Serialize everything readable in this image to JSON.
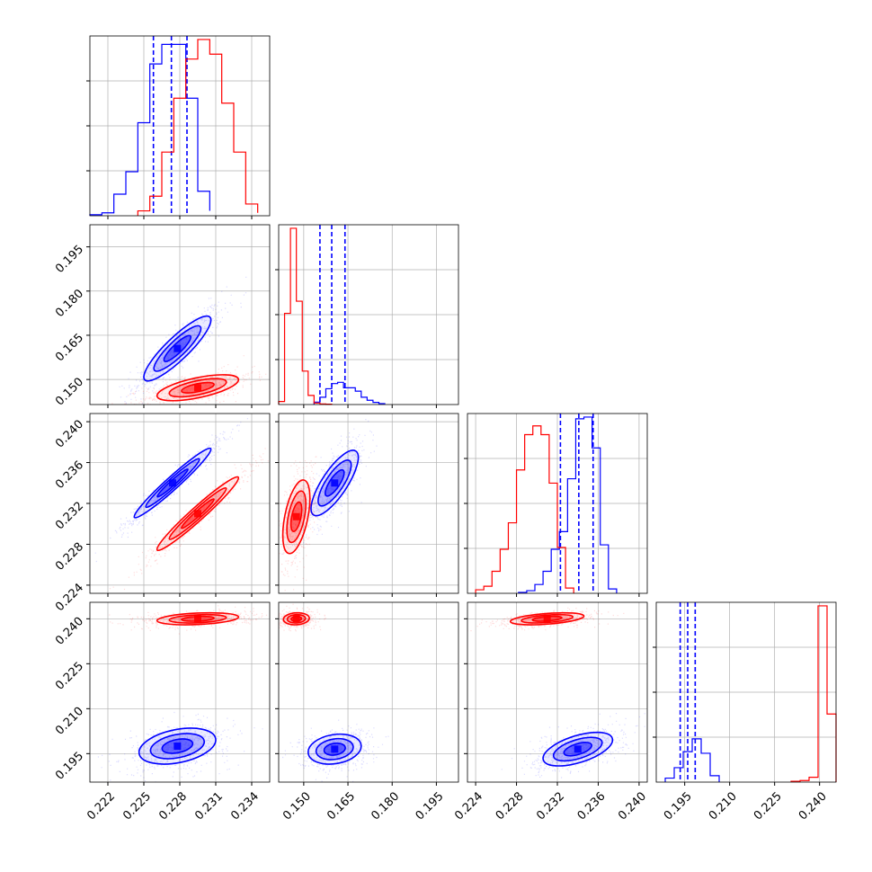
{
  "chart_data": {
    "type": "corner",
    "colors": {
      "series_a": "#0000ff",
      "series_b": "#ff0000",
      "grid": "#b0b0b0"
    },
    "grid": true,
    "parameters": [
      {
        "index": 0,
        "range": [
          0.2205,
          0.2355
        ],
        "ticks": [
          "0.222",
          "0.225",
          "0.228",
          "0.231",
          "0.234"
        ]
      },
      {
        "index": 1,
        "range": [
          0.1415,
          0.2025
        ],
        "ticks": [
          "0.150",
          "0.165",
          "0.180",
          "0.195"
        ]
      },
      {
        "index": 2,
        "range": [
          0.2232,
          0.2408
        ],
        "ticks": [
          "0.224",
          "0.228",
          "0.232",
          "0.236",
          "0.240"
        ]
      },
      {
        "index": 3,
        "range": [
          0.1855,
          0.2455
        ],
        "ticks": [
          "0.195",
          "0.210",
          "0.225",
          "0.240"
        ]
      }
    ],
    "series": [
      {
        "color": "#0000ff",
        "quantiles": [
          [
            0.2258,
            0.2273,
            0.2286
          ],
          [
            0.1555,
            0.1595,
            0.164
          ],
          [
            0.2323,
            0.2341,
            0.2355
          ],
          [
            0.1935,
            0.196,
            0.1985
          ]
        ],
        "histograms": [
          {
            "bins": [
              0.2205,
              0.2215,
              0.2225,
              0.2235,
              0.2245,
              0.2255,
              0.2265,
              0.2275,
              0.2285,
              0.2295,
              0.2305
            ],
            "counts": [
              1,
              3,
              22,
              45,
              95,
              155,
              175,
              175,
              120,
              25,
              5
            ]
          },
          {
            "bins": [
              0.1535,
              0.1555,
              0.1575,
              0.1595,
              0.1615,
              0.1635,
              0.1655,
              0.1675,
              0.1695,
              0.1715,
              0.1735,
              0.1755,
              0.1775
            ],
            "counts": [
              8,
              24,
              52,
              69,
              73,
              55,
              55,
              44,
              24,
              14,
              7,
              3,
              1
            ]
          },
          {
            "bins": [
              0.2282,
              0.229,
              0.2298,
              0.2306,
              0.2314,
              0.2322,
              0.233,
              0.2338,
              0.2346,
              0.2354,
              0.2362,
              0.237,
              0.2378
            ],
            "counts": [
              1,
              3,
              10,
              25,
              50,
              70,
              130,
              198,
              200,
              165,
              55,
              5
            ]
          },
          {
            "bins": [
              0.1885,
              0.1915,
              0.1945,
              0.1975,
              0.2005,
              0.2035,
              0.2065
            ],
            "counts": [
              5,
              18,
              38,
              54,
              36,
              8
            ]
          }
        ]
      },
      {
        "color": "#ff0000",
        "quantiles": [],
        "histograms": [
          {
            "bins": [
              0.2245,
              0.2255,
              0.2265,
              0.2275,
              0.2285,
              0.2295,
              0.2305,
              0.2315,
              0.2325,
              0.2335,
              0.2345
            ],
            "counts": [
              5,
              20,
              65,
              120,
              160,
              180,
              165,
              115,
              65,
              12,
              3
            ]
          },
          {
            "bins": [
              0.1415,
              0.1435,
              0.1455,
              0.1475,
              0.1495,
              0.1515,
              0.1535,
              0.1555,
              0.1575,
              0.1595
            ],
            "counts": [
              10,
              300,
              580,
              340,
              110,
              30,
              5,
              2,
              1
            ]
          },
          {
            "bins": [
              0.224,
              0.2248,
              0.2256,
              0.2264,
              0.2272,
              0.228,
              0.2288,
              0.2296,
              0.2304,
              0.2312,
              0.232,
              0.2328,
              0.2336
            ],
            "counts": [
              4,
              8,
              25,
              50,
              80,
              140,
              180,
              190,
              180,
              125,
              52,
              6
            ]
          },
          {
            "bins": [
              0.2305,
              0.2335,
              0.2365,
              0.2395,
              0.2425,
              0.2455
            ],
            "counts": [
              1,
              2,
              6,
              220,
              85
            ]
          }
        ]
      }
    ],
    "scatter": [
      {
        "pair": [
          0,
          1
        ],
        "series": [
          {
            "color": "#0000ff",
            "center": [
              0.2278,
              0.1605
            ],
            "spread": [
              0.0014,
              0.0055
            ],
            "rho": 0.88
          },
          {
            "color": "#ff0000",
            "center": [
              0.2295,
              0.1472
            ],
            "spread": [
              0.0017,
              0.0022
            ],
            "rho": 0.62
          }
        ]
      },
      {
        "pair": [
          0,
          2
        ],
        "series": [
          {
            "color": "#0000ff",
            "center": [
              0.2274,
              0.234
            ],
            "spread": [
              0.0016,
              0.0017
            ],
            "rho": 0.97
          },
          {
            "color": "#ff0000",
            "center": [
              0.2295,
              0.231
            ],
            "spread": [
              0.0017,
              0.0018
            ],
            "rho": 0.97
          }
        ]
      },
      {
        "pair": [
          1,
          2
        ],
        "series": [
          {
            "color": "#0000ff",
            "center": [
              0.1605,
              0.234
            ],
            "spread": [
              0.004,
              0.0016
            ],
            "rho": 0.78
          },
          {
            "color": "#ff0000",
            "center": [
              0.1475,
              0.2307
            ],
            "spread": [
              0.0023,
              0.0018
            ],
            "rho": 0.5
          }
        ]
      },
      {
        "pair": [
          0,
          3
        ],
        "series": [
          {
            "color": "#0000ff",
            "center": [
              0.2278,
              0.1975
            ],
            "spread": [
              0.0016,
              0.003
            ],
            "rho": 0.35
          },
          {
            "color": "#ff0000",
            "center": [
              0.2295,
              0.24
            ],
            "spread": [
              0.0017,
              0.001
            ],
            "rho": 0.3
          }
        ]
      },
      {
        "pair": [
          1,
          3
        ],
        "series": [
          {
            "color": "#0000ff",
            "center": [
              0.1605,
              0.1965
            ],
            "spread": [
              0.0045,
              0.0025
            ],
            "rho": 0.2
          },
          {
            "color": "#ff0000",
            "center": [
              0.1475,
              0.24
            ],
            "spread": [
              0.0022,
              0.001
            ],
            "rho": 0.1
          }
        ]
      },
      {
        "pair": [
          2,
          3
        ],
        "series": [
          {
            "color": "#0000ff",
            "center": [
              0.234,
              0.1965
            ],
            "spread": [
              0.0017,
              0.0028
            ],
            "rho": 0.55
          },
          {
            "color": "#ff0000",
            "center": [
              0.231,
              0.24
            ],
            "spread": [
              0.0018,
              0.001
            ],
            "rho": 0.45
          }
        ]
      }
    ]
  }
}
